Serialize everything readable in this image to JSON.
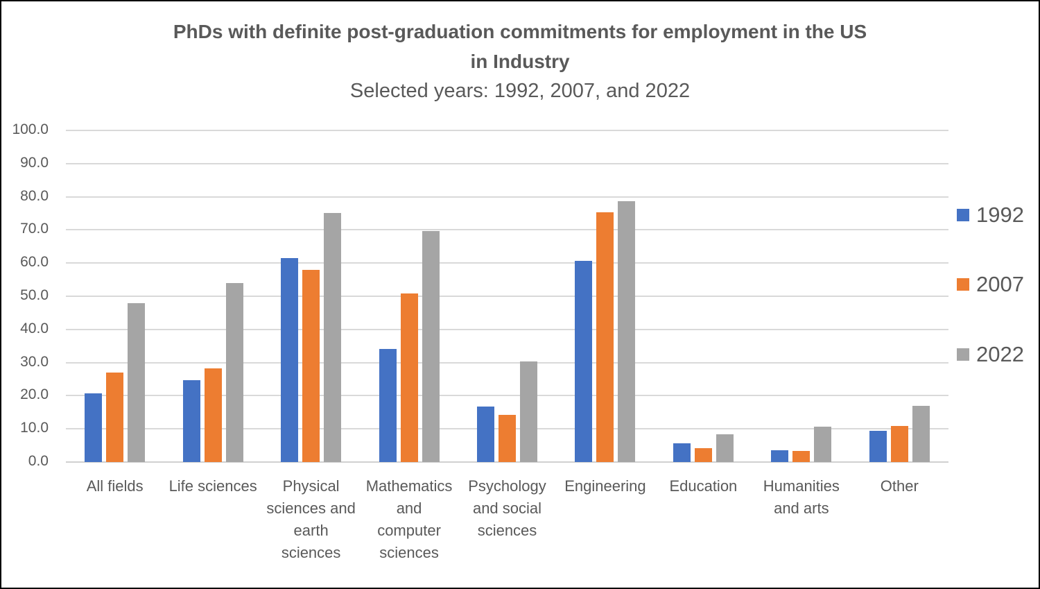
{
  "chart_data": {
    "type": "bar",
    "title": "PhDs with definite post-graduation commitments for employment in the US in Industry",
    "title_line1": "PhDs with definite post-graduation commitments for employment in the US",
    "title_line2": "in Industry",
    "subtitle": "Selected years: 1992, 2007, and 2022",
    "xlabel": "",
    "ylabel": "",
    "ylim": [
      0,
      100
    ],
    "yticks": [
      "0.0",
      "10.0",
      "20.0",
      "30.0",
      "40.0",
      "50.0",
      "60.0",
      "70.0",
      "80.0",
      "90.0",
      "100.0"
    ],
    "grid": true,
    "legend_position": "right",
    "categories": [
      "All fields",
      "Life sciences",
      "Physical sciences and earth sciences",
      "Mathematics and computer sciences",
      "Psychology and social sciences",
      "Engineering",
      "Education",
      "Humanities and arts",
      "Other"
    ],
    "category_label_lines": [
      [
        "All fields"
      ],
      [
        "Life sciences"
      ],
      [
        "Physical",
        "sciences and",
        "earth",
        "sciences"
      ],
      [
        "Mathematics",
        "and",
        "computer",
        "sciences"
      ],
      [
        "Psychology",
        "and social",
        "sciences"
      ],
      [
        "Engineering"
      ],
      [
        "Education"
      ],
      [
        "Humanities",
        "and arts"
      ],
      [
        "Other"
      ]
    ],
    "series": [
      {
        "name": "1992",
        "color": "#4472C4",
        "values": [
          20.8,
          24.7,
          61.6,
          34.0,
          16.7,
          60.7,
          5.6,
          3.6,
          9.5
        ]
      },
      {
        "name": "2007",
        "color": "#ED7D31",
        "values": [
          26.9,
          28.3,
          58.0,
          50.8,
          14.2,
          75.3,
          4.2,
          3.4,
          10.9
        ]
      },
      {
        "name": "2022",
        "color": "#A5A5A5",
        "values": [
          48.0,
          53.9,
          75.2,
          69.7,
          30.3,
          78.6,
          8.4,
          10.7,
          17.0
        ]
      }
    ]
  }
}
